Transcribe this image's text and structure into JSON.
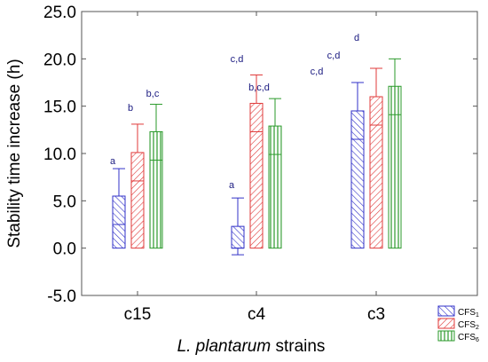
{
  "chart_data": {
    "type": "bar",
    "xlabel_italic": "L. plantarum",
    "xlabel_rest": " strains",
    "ylabel": "Stability time increase (h)",
    "ylim": [
      -5,
      25
    ],
    "yticks": [
      "-5.0",
      "0.0",
      "5.0",
      "10.0",
      "15.0",
      "20.0",
      "25.0"
    ],
    "categories": [
      "c15",
      "c4",
      "c3"
    ],
    "series": [
      {
        "name": "CFS",
        "sub": "1",
        "color": "#3232c8",
        "pattern": "diag-lr",
        "values": [
          5.5,
          2.3,
          14.5
        ],
        "box_low": [
          2.5,
          0.0,
          11.5
        ],
        "err_high": [
          8.4,
          5.3,
          17.5
        ],
        "err_low": [
          2.5,
          -0.7,
          11.5
        ],
        "labels": [
          "a",
          "a",
          "c,d"
        ]
      },
      {
        "name": "CFS",
        "sub": "2",
        "color": "#e03a3a",
        "pattern": "diag-rl",
        "values": [
          10.1,
          15.3,
          16.0
        ],
        "box_low": [
          7.1,
          12.3,
          13.0
        ],
        "err_high": [
          13.1,
          18.3,
          19.0
        ],
        "err_low": [
          7.1,
          12.3,
          13.0
        ],
        "labels": [
          "b",
          "c,d",
          "c,d"
        ]
      },
      {
        "name": "CFS",
        "sub": "6",
        "color": "#2a9a2a",
        "pattern": "vert",
        "values": [
          12.3,
          12.9,
          17.1
        ],
        "box_low": [
          9.3,
          9.9,
          14.1
        ],
        "err_high": [
          15.2,
          15.8,
          20.0
        ],
        "err_low": [
          9.3,
          9.9,
          14.1
        ],
        "labels": [
          "b,c",
          "b,c,d",
          "d"
        ]
      }
    ],
    "legend_position": "bottom-right",
    "grid": false
  }
}
